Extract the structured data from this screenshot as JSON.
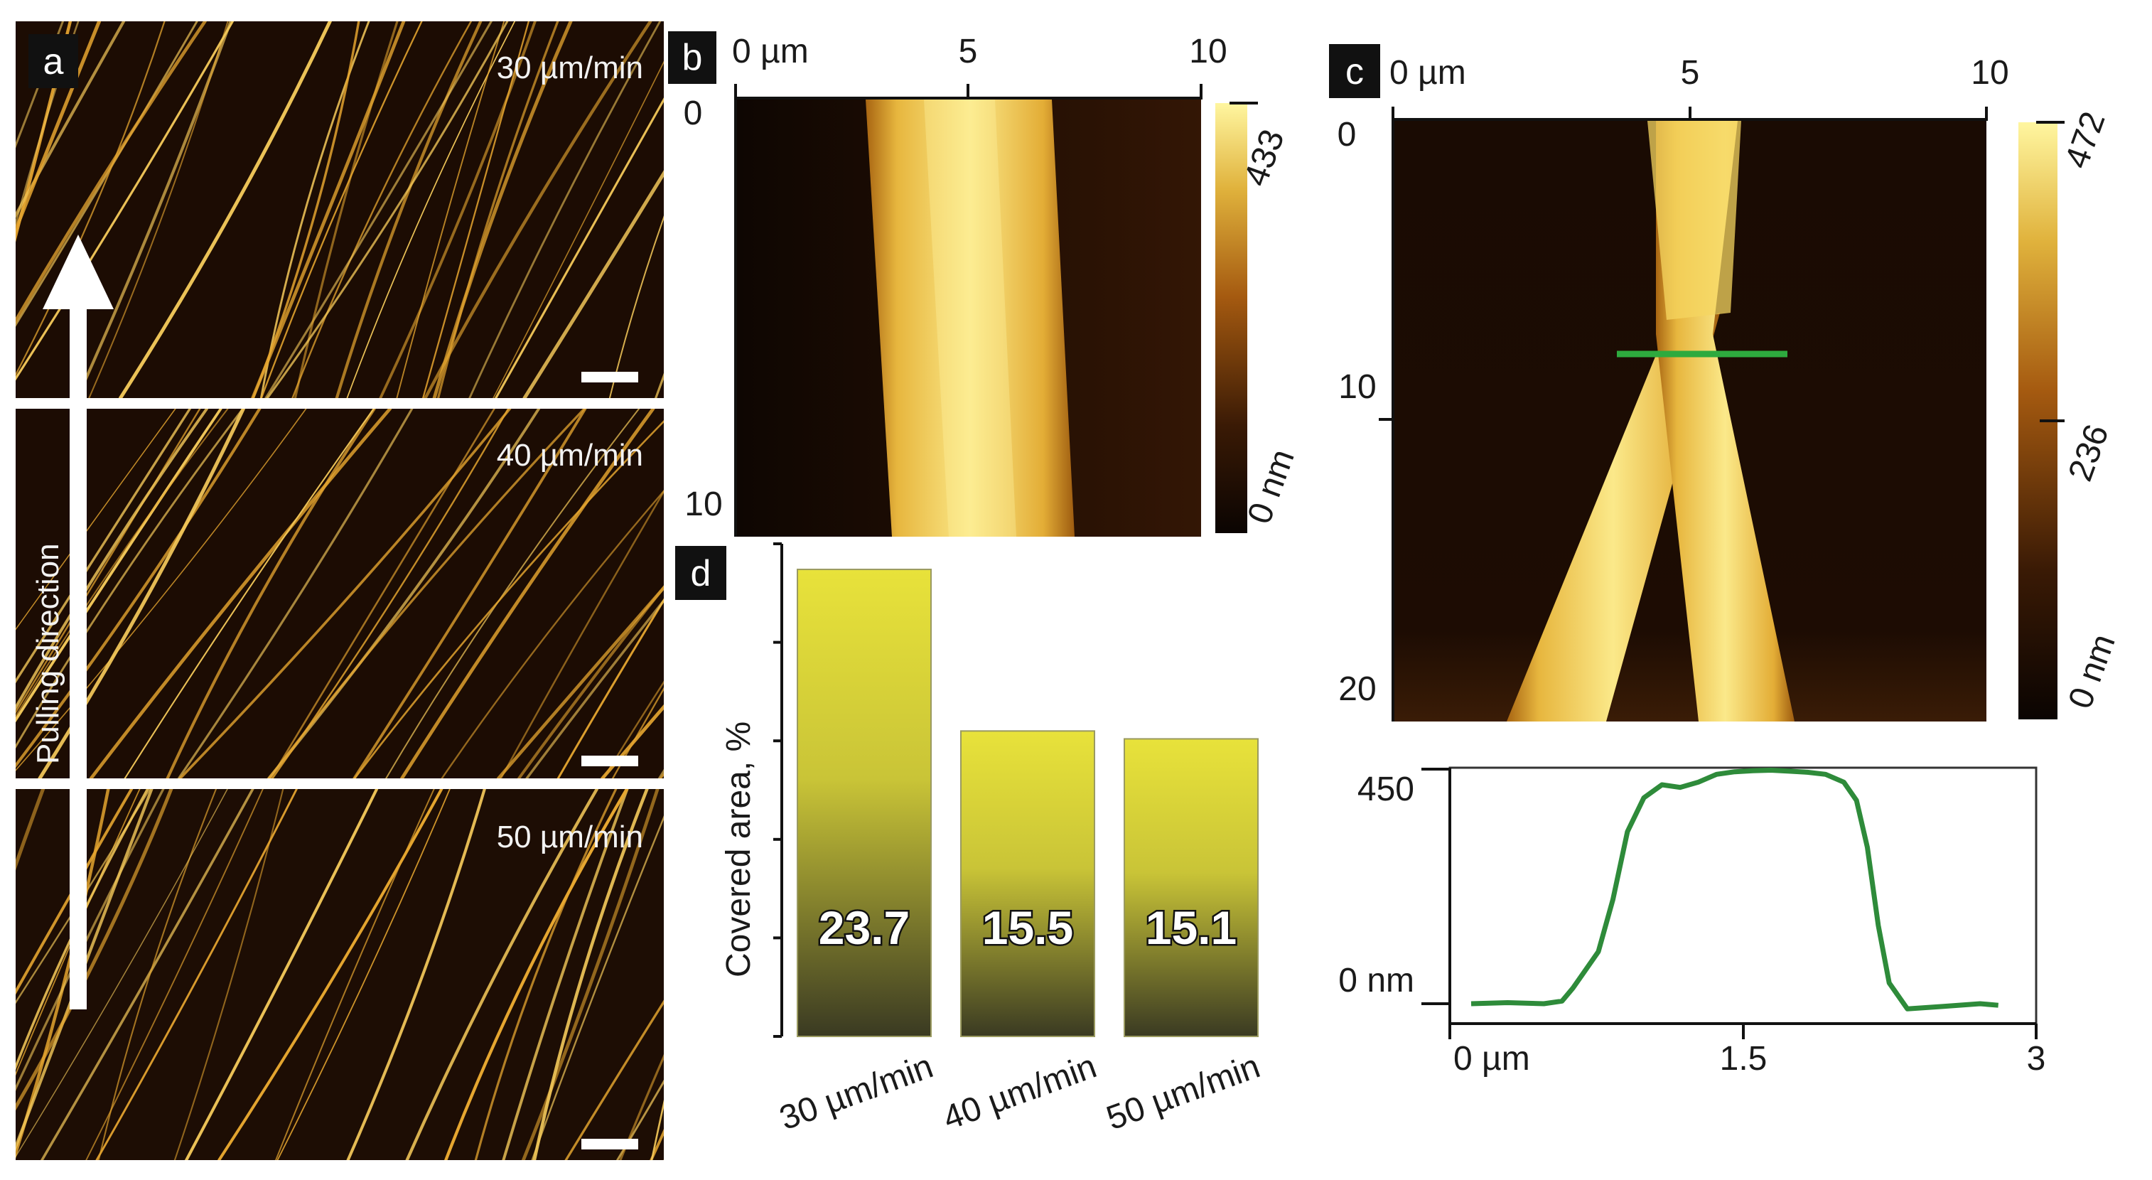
{
  "panels": {
    "a": {
      "letter": "a",
      "speeds": [
        "30 µm/min",
        "40 µm/min",
        "50 µm/min"
      ],
      "arrow_label": "Pulling direction"
    },
    "b": {
      "letter": "b",
      "x_ticks": [
        "0 µm",
        "5",
        "10"
      ],
      "y_ticks": [
        "0",
        "10"
      ],
      "colorbar_labels": [
        "433",
        "0 nm"
      ]
    },
    "c": {
      "letter": "c",
      "x_ticks": [
        "0 µm",
        "5",
        "10"
      ],
      "y_ticks": [
        "0",
        "10",
        "20"
      ],
      "colorbar_labels": [
        "472",
        "236",
        "0 nm"
      ],
      "profile_line_color": "#2e9e3e"
    },
    "d": {
      "letter": "d"
    }
  },
  "chart_data": [
    {
      "type": "bar",
      "panel": "d",
      "categories": [
        "30 µm/min",
        "40 µm/min",
        "50 µm/min"
      ],
      "values": [
        23.7,
        15.5,
        15.1
      ],
      "data_labels": [
        "23.7",
        "15.5",
        "15.1"
      ],
      "ylabel": "Covered area, %",
      "ylim": [
        0,
        25
      ],
      "bar_color_top": "#e8e23a",
      "bar_color_bottom": "#3a3a22"
    },
    {
      "type": "line",
      "panel": "c-profile",
      "xlabel_ticks": [
        "0 µm",
        "1.5",
        "3"
      ],
      "ylabel_ticks": [
        "450",
        "0 nm"
      ],
      "xlim": [
        0,
        3
      ],
      "ylim": [
        -20,
        480
      ],
      "color": "#2e8b3a",
      "x": [
        0.0,
        0.2,
        0.4,
        0.5,
        0.56,
        0.62,
        0.7,
        0.78,
        0.86,
        0.95,
        1.05,
        1.15,
        1.25,
        1.35,
        1.45,
        1.55,
        1.65,
        1.75,
        1.85,
        1.95,
        2.05,
        2.12,
        2.18,
        2.24,
        2.3,
        2.4,
        2.6,
        2.8,
        2.9
      ],
      "y": [
        0,
        2,
        0,
        5,
        30,
        60,
        100,
        200,
        330,
        395,
        420,
        415,
        425,
        440,
        445,
        447,
        448,
        446,
        444,
        440,
        425,
        390,
        300,
        150,
        40,
        -10,
        -5,
        0,
        -3
      ]
    }
  ]
}
